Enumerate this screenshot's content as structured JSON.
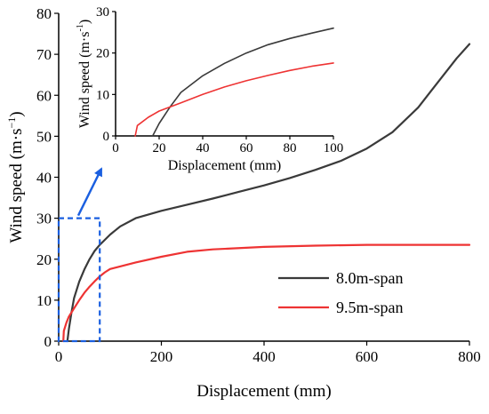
{
  "chart_data": [
    {
      "type": "line",
      "role": "main",
      "xlabel": "Displacement (mm)",
      "ylabel": "Wind speed (m·s",
      "ylabel_exponent": "−1",
      "ylabel_close": ")",
      "xlim": [
        0,
        800
      ],
      "ylim": [
        0,
        80
      ],
      "xticks": [
        "0",
        "200",
        "400",
        "600",
        "800"
      ],
      "yticks": [
        "0",
        "10",
        "20",
        "30",
        "40",
        "50",
        "60",
        "70",
        "80"
      ],
      "grid": false,
      "legend_placement": "bottom-right",
      "series": [
        {
          "name": "8.0m-span",
          "color": "#3a3a3a",
          "x": [
            17,
            20,
            25,
            30,
            40,
            50,
            60,
            70,
            80,
            100,
            120,
            150,
            200,
            250,
            300,
            350,
            400,
            450,
            500,
            550,
            600,
            650,
            700,
            725,
            750,
            775,
            800
          ],
          "y": [
            0,
            3,
            7,
            10.5,
            14.5,
            17.5,
            20,
            22,
            23.5,
            26,
            28,
            30,
            31.8,
            33.3,
            34.8,
            36.4,
            38,
            39.8,
            41.8,
            44,
            47,
            51,
            57,
            61,
            65,
            69,
            72.5
          ]
        },
        {
          "name": "9.5m-span",
          "color": "#ee3333",
          "x": [
            9,
            10,
            15,
            20,
            30,
            40,
            50,
            60,
            70,
            80,
            90,
            100,
            150,
            200,
            250,
            300,
            400,
            500,
            600,
            700,
            800
          ],
          "y": [
            0,
            2.5,
            4.5,
            6,
            8,
            10,
            11.8,
            13.3,
            14.6,
            15.8,
            16.8,
            17.6,
            19.2,
            20.6,
            21.8,
            22.4,
            23,
            23.3,
            23.5,
            23.5,
            23.5
          ]
        }
      ],
      "annotation": {
        "type": "dashed-box",
        "x_range": [
          0,
          80
        ],
        "y_range": [
          0,
          30
        ],
        "color": "#1a5fe0"
      }
    },
    {
      "type": "line",
      "role": "inset",
      "xlabel": "Displacement (mm)",
      "ylabel": "Wind speed (m·s",
      "ylabel_exponent": "-1",
      "ylabel_close": ")",
      "xlim": [
        0,
        100
      ],
      "ylim": [
        0,
        30
      ],
      "xticks": [
        "0",
        "20",
        "40",
        "60",
        "80",
        "100"
      ],
      "yticks": [
        "0",
        "10",
        "20",
        "30"
      ],
      "grid": false,
      "series": [
        {
          "color": "#3a3a3a",
          "x": [
            17,
            20,
            25,
            30,
            40,
            50,
            60,
            70,
            80,
            90,
            100
          ],
          "y": [
            0,
            3,
            7,
            10.5,
            14.5,
            17.5,
            20,
            22,
            23.5,
            24.8,
            26
          ]
        },
        {
          "color": "#ee3333",
          "x": [
            9,
            10,
            15,
            20,
            30,
            40,
            50,
            60,
            70,
            80,
            90,
            100
          ],
          "y": [
            0,
            2.5,
            4.5,
            6,
            8,
            10,
            11.8,
            13.3,
            14.6,
            15.8,
            16.8,
            17.6
          ]
        }
      ]
    }
  ]
}
